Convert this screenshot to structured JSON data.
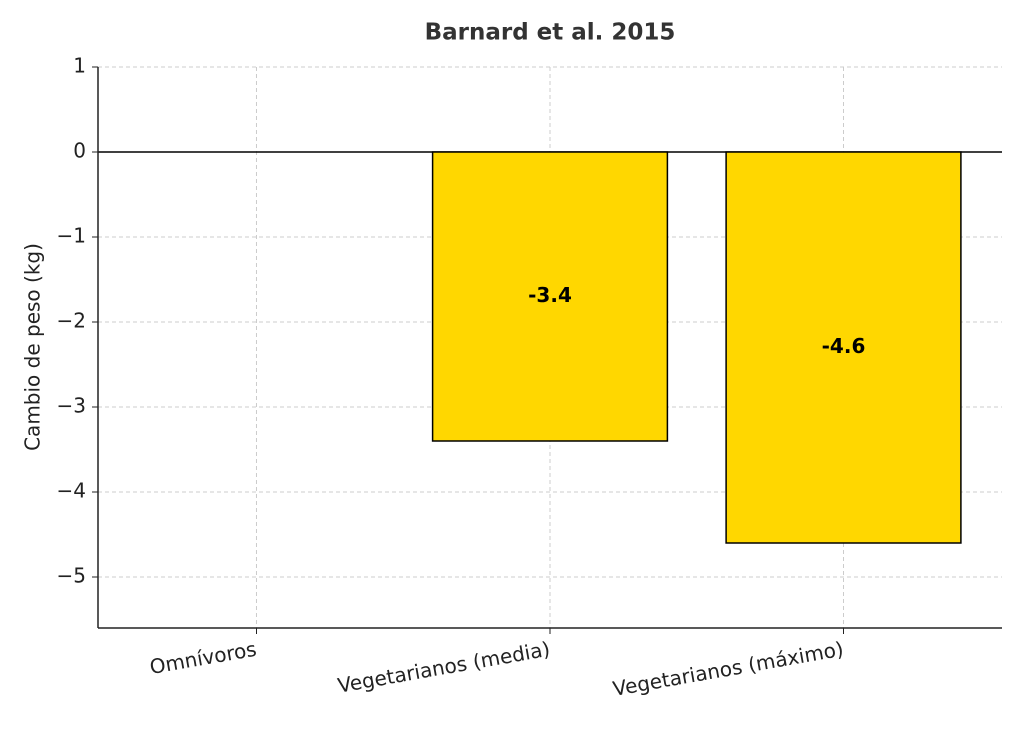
{
  "chart_data": {
    "type": "bar",
    "title": "Barnard et al. 2015",
    "y_label": "Cambio de peso (kg)",
    "categories": [
      "Omnívoros",
      "Vegetarianos (media)",
      "Vegetarianos (máximo)"
    ],
    "values": [
      0,
      -3.4,
      -4.6
    ],
    "value_labels": [
      null,
      "-3.4",
      "-4.6"
    ],
    "color": "#ffd700",
    "ylim": [
      -5.6,
      1
    ],
    "yticks": [
      1,
      0,
      {
        "value": -1,
        "label": "−1"
      },
      {
        "value": -2,
        "label": "−2"
      },
      {
        "value": -3,
        "label": "−3"
      },
      {
        "value": -4,
        "label": "−4"
      },
      {
        "value": -5,
        "label": "−5"
      }
    ],
    "grid": true
  }
}
